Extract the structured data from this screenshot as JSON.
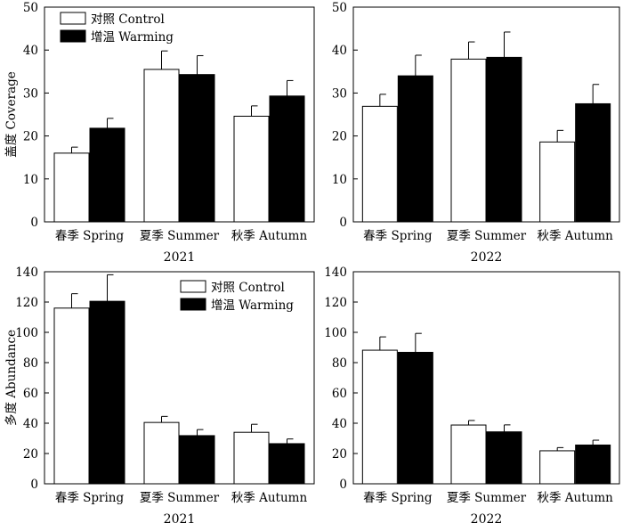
{
  "chart_data": [
    {
      "type": "bar",
      "panel": "top-left",
      "title": "",
      "xlabel": "2021",
      "ylabel": "盖度 Coverage",
      "ylim": [
        0,
        50
      ],
      "yticks": [
        0,
        10,
        20,
        30,
        40,
        50
      ],
      "categories": [
        "春季 Spring",
        "夏季 Summer",
        "秋季 Autumn"
      ],
      "series": [
        {
          "name": "对照 Control",
          "color": "#ffffff",
          "values": [
            16,
            35.5,
            24.6
          ],
          "errors": [
            1.4,
            4.3,
            2.4
          ]
        },
        {
          "name": "增温 Warming",
          "color": "#000000",
          "values": [
            21.8,
            34.3,
            29.3
          ],
          "errors": [
            2.3,
            4.4,
            3.6
          ]
        }
      ],
      "legend": "top-left"
    },
    {
      "type": "bar",
      "panel": "top-right",
      "title": "",
      "xlabel": "2022",
      "ylabel": "",
      "ylim": [
        0,
        50
      ],
      "yticks": [
        0,
        10,
        20,
        30,
        40,
        50
      ],
      "categories": [
        "春季 Spring",
        "夏季 Summer",
        "秋季 Autumn"
      ],
      "series": [
        {
          "name": "对照 Control",
          "color": "#ffffff",
          "values": [
            26.9,
            37.9,
            18.6
          ],
          "errors": [
            2.8,
            4.0,
            2.7
          ]
        },
        {
          "name": "增温 Warming",
          "color": "#000000",
          "values": [
            34,
            38.3,
            27.5
          ],
          "errors": [
            4.8,
            5.9,
            4.5
          ]
        }
      ]
    },
    {
      "type": "bar",
      "panel": "bottom-left",
      "title": "",
      "xlabel": "2021",
      "ylabel": "多度 Abundance",
      "ylim": [
        0,
        140
      ],
      "yticks": [
        0,
        20,
        40,
        60,
        80,
        100,
        120,
        140
      ],
      "categories": [
        "春季 Spring",
        "夏季 Summer",
        "秋季 Autumn"
      ],
      "series": [
        {
          "name": "对照 Control",
          "color": "#ffffff",
          "values": [
            116,
            40.5,
            34
          ],
          "errors": [
            9.5,
            4,
            5.3
          ]
        },
        {
          "name": "增温 Warming",
          "color": "#000000",
          "values": [
            120.5,
            31.8,
            26.5
          ],
          "errors": [
            17.5,
            4,
            3.1
          ]
        }
      ],
      "legend": "top-right"
    },
    {
      "type": "bar",
      "panel": "bottom-right",
      "title": "",
      "xlabel": "2022",
      "ylabel": "",
      "ylim": [
        0,
        140
      ],
      "yticks": [
        0,
        20,
        40,
        60,
        80,
        100,
        120,
        140
      ],
      "categories": [
        "春季 Spring",
        "夏季 Summer",
        "秋季 Autumn"
      ],
      "series": [
        {
          "name": "对照 Control",
          "color": "#ffffff",
          "values": [
            88.2,
            38.8,
            21.8
          ],
          "errors": [
            8.8,
            3,
            2.1
          ]
        },
        {
          "name": "增温 Warming",
          "color": "#000000",
          "values": [
            86.8,
            34.3,
            25.6
          ],
          "errors": [
            12.5,
            4.6,
            3.2
          ]
        }
      ]
    }
  ]
}
